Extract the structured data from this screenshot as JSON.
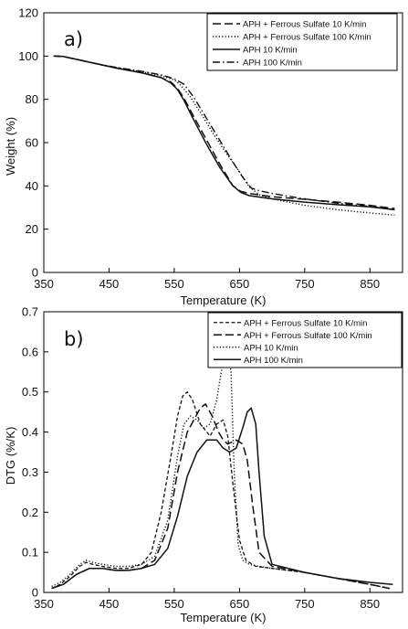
{
  "chart_data": [
    {
      "type": "line",
      "panel_label": "a)",
      "title": "",
      "xlabel": "Temperature (K)",
      "ylabel": "Weight (%)",
      "xlim": [
        350,
        900
      ],
      "ylim": [
        0,
        120
      ],
      "xticks": [
        350,
        450,
        550,
        650,
        750,
        850
      ],
      "yticks": [
        0,
        20,
        40,
        60,
        80,
        100,
        120
      ],
      "grid": false,
      "legend_position": "top-right",
      "series": [
        {
          "name": "APH + Ferrous Sulfate 10 K/min",
          "style": "dashed",
          "x": [
            365,
            380,
            400,
            430,
            460,
            500,
            530,
            545,
            555,
            565,
            580,
            600,
            620,
            640,
            652,
            665,
            700,
            750,
            800,
            850,
            888
          ],
          "y": [
            100,
            99.8,
            98.5,
            96.5,
            94.5,
            92.3,
            90,
            88,
            85,
            80.5,
            72,
            61,
            50,
            40,
            37.5,
            36.5,
            35,
            33.8,
            32.5,
            31,
            29.5
          ]
        },
        {
          "name": "APH + Ferrous Sulfate 100 K/min",
          "style": "dotted",
          "x": [
            365,
            380,
            400,
            430,
            460,
            500,
            530,
            550,
            560,
            575,
            590,
            610,
            630,
            650,
            665,
            680,
            700,
            750,
            800,
            850,
            888
          ],
          "y": [
            100,
            99.8,
            98.5,
            96.5,
            94.7,
            92.8,
            90.8,
            89,
            86.5,
            81,
            74,
            64,
            55,
            46.5,
            39.5,
            36,
            34,
            31,
            29,
            27.5,
            26.5
          ]
        },
        {
          "name": "APH 10 K/min",
          "style": "solid",
          "x": [
            365,
            380,
            400,
            430,
            460,
            500,
            530,
            545,
            555,
            565,
            580,
            600,
            620,
            640,
            652,
            665,
            700,
            750,
            800,
            850,
            888
          ],
          "y": [
            100,
            99.8,
            98.5,
            96.5,
            94.5,
            92.3,
            90,
            87.5,
            84.5,
            79.5,
            70.5,
            59,
            48.5,
            40,
            37,
            35.5,
            34,
            32.5,
            31.3,
            30.3,
            29
          ]
        },
        {
          "name": "APH 100 K/min",
          "style": "dashdot",
          "x": [
            365,
            380,
            400,
            430,
            460,
            500,
            530,
            550,
            565,
            580,
            600,
            620,
            640,
            655,
            668,
            680,
            700,
            750,
            800,
            850,
            888
          ],
          "y": [
            100,
            99.8,
            98.5,
            96.5,
            94.8,
            93,
            91.3,
            89.5,
            87,
            81,
            71,
            61,
            51,
            44,
            39,
            37.8,
            36.5,
            34,
            32,
            30.5,
            29
          ]
        }
      ]
    },
    {
      "type": "line",
      "panel_label": "b)",
      "title": "",
      "xlabel": "Temperature (K)",
      "ylabel": "DTG (%/K)",
      "xlim": [
        350,
        900
      ],
      "ylim": [
        0,
        0.7
      ],
      "xticks": [
        350,
        450,
        550,
        650,
        750,
        850
      ],
      "yticks": [
        0,
        0.1,
        0.2,
        0.3,
        0.4,
        0.5,
        0.6,
        0.7
      ],
      "grid": false,
      "legend_position": "top-right",
      "series": [
        {
          "name": "APH + Ferrous Sulfate 10 K/min",
          "style": "short-dashed",
          "x": [
            362,
            375,
            390,
            405,
            415,
            425,
            440,
            460,
            480,
            500,
            515,
            530,
            545,
            555,
            563,
            570,
            578,
            590,
            605,
            615,
            625,
            632,
            640,
            650,
            660,
            675,
            700,
            750,
            800,
            850,
            880
          ],
          "y": [
            0.01,
            0.02,
            0.04,
            0.065,
            0.075,
            0.07,
            0.065,
            0.06,
            0.06,
            0.07,
            0.1,
            0.2,
            0.34,
            0.44,
            0.49,
            0.5,
            0.48,
            0.42,
            0.39,
            0.42,
            0.43,
            0.39,
            0.27,
            0.13,
            0.08,
            0.065,
            0.06,
            0.05,
            0.035,
            0.02,
            0.01
          ]
        },
        {
          "name": "APH + Ferrous Sulfate 100 K/min",
          "style": "dashed",
          "x": [
            362,
            380,
            400,
            420,
            440,
            460,
            480,
            500,
            520,
            540,
            555,
            570,
            580,
            590,
            598,
            608,
            618,
            625,
            632,
            645,
            655,
            662,
            670,
            680,
            700,
            750,
            800,
            850,
            880
          ],
          "y": [
            0.01,
            0.02,
            0.045,
            0.06,
            0.06,
            0.055,
            0.055,
            0.06,
            0.08,
            0.16,
            0.3,
            0.4,
            0.43,
            0.46,
            0.47,
            0.44,
            0.4,
            0.38,
            0.37,
            0.38,
            0.37,
            0.33,
            0.22,
            0.1,
            0.065,
            0.05,
            0.035,
            0.02,
            0.01
          ]
        },
        {
          "name": "APH 10 K/min",
          "style": "dotted",
          "x": [
            362,
            375,
            390,
            405,
            415,
            425,
            440,
            460,
            480,
            500,
            520,
            540,
            555,
            565,
            575,
            585,
            595,
            605,
            615,
            622,
            628,
            633,
            637,
            642,
            648,
            655,
            665,
            680,
            700,
            750,
            800,
            850,
            880
          ],
          "y": [
            0.015,
            0.025,
            0.045,
            0.07,
            0.08,
            0.075,
            0.07,
            0.065,
            0.065,
            0.07,
            0.09,
            0.18,
            0.34,
            0.42,
            0.44,
            0.43,
            0.41,
            0.42,
            0.48,
            0.55,
            0.59,
            0.6,
            0.55,
            0.3,
            0.12,
            0.08,
            0.07,
            0.065,
            0.06,
            0.05,
            0.035,
            0.02,
            0.01
          ]
        },
        {
          "name": "APH 100 K/min",
          "style": "solid",
          "x": [
            362,
            380,
            400,
            420,
            440,
            460,
            480,
            500,
            520,
            540,
            555,
            570,
            585,
            600,
            615,
            625,
            635,
            645,
            655,
            662,
            668,
            675,
            680,
            688,
            700,
            750,
            800,
            850,
            885
          ],
          "y": [
            0.01,
            0.02,
            0.045,
            0.06,
            0.06,
            0.055,
            0.055,
            0.06,
            0.07,
            0.11,
            0.19,
            0.29,
            0.35,
            0.38,
            0.38,
            0.36,
            0.35,
            0.36,
            0.41,
            0.45,
            0.46,
            0.42,
            0.3,
            0.14,
            0.07,
            0.05,
            0.035,
            0.025,
            0.02
          ]
        }
      ]
    }
  ]
}
